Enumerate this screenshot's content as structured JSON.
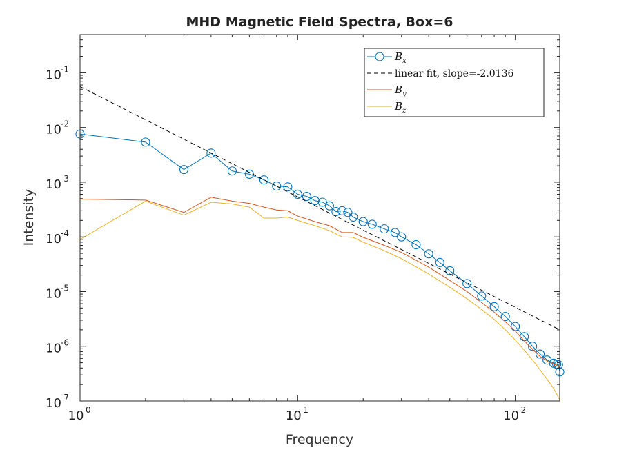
{
  "chart_data": {
    "type": "line",
    "title": "MHD Magnetic Field Spectra, Box=6",
    "xlabel": "Frequency",
    "ylabel": "Intensity",
    "xscale": "log",
    "yscale": "log",
    "xlim": [
      1,
      160
    ],
    "ylim": [
      1e-07,
      0.5
    ],
    "grid": false,
    "legend_position": "top-right",
    "x_ticks": [
      {
        "base": "10",
        "exp": "0",
        "v": 1
      },
      {
        "base": "10",
        "exp": "1",
        "v": 10
      },
      {
        "base": "10",
        "exp": "2",
        "v": 100
      }
    ],
    "y_ticks": [
      {
        "base": "10",
        "exp": "-7",
        "v": 1e-07
      },
      {
        "base": "10",
        "exp": "-6",
        "v": 1e-06
      },
      {
        "base": "10",
        "exp": "-5",
        "v": 1e-05
      },
      {
        "base": "10",
        "exp": "-4",
        "v": 0.0001
      },
      {
        "base": "10",
        "exp": "-3",
        "v": 0.001
      },
      {
        "base": "10",
        "exp": "-2",
        "v": 0.01
      },
      {
        "base": "10",
        "exp": "-1",
        "v": 0.1
      }
    ],
    "series": [
      {
        "name_var": "B",
        "name_sub": "x",
        "color": "#0072bd",
        "style": "line-circle",
        "points": [
          [
            1,
            0.0076
          ],
          [
            2,
            0.0054
          ],
          [
            3,
            0.0017
          ],
          [
            4,
            0.0034
          ],
          [
            5,
            0.0016
          ],
          [
            6,
            0.0014
          ],
          [
            7,
            0.0011
          ],
          [
            8,
            0.00085
          ],
          [
            9,
            0.00082
          ],
          [
            10,
            0.0006
          ],
          [
            11,
            0.00055
          ],
          [
            12,
            0.00046
          ],
          [
            13,
            0.00043
          ],
          [
            14,
            0.00037
          ],
          [
            15,
            0.00029
          ],
          [
            16,
            0.0003
          ],
          [
            17,
            0.00028
          ],
          [
            18,
            0.00023
          ],
          [
            20,
            0.00019
          ],
          [
            22,
            0.00017
          ],
          [
            25,
            0.00014
          ],
          [
            28,
            0.00012
          ],
          [
            30,
            0.0001
          ],
          [
            35,
            7.2e-05
          ],
          [
            40,
            4.9e-05
          ],
          [
            45,
            3.4e-05
          ],
          [
            50,
            2.4e-05
          ],
          [
            60,
            1.4e-05
          ],
          [
            70,
            8.3e-06
          ],
          [
            80,
            5.3e-06
          ],
          [
            90,
            3.5e-06
          ],
          [
            100,
            2.3e-06
          ],
          [
            110,
            1.5e-06
          ],
          [
            120,
            1e-06
          ],
          [
            130,
            7.2e-07
          ],
          [
            140,
            5.6e-07
          ],
          [
            150,
            4.9e-07
          ],
          [
            155,
            4.7e-07
          ],
          [
            158,
            4.6e-07
          ],
          [
            160,
            3.4e-07
          ]
        ]
      },
      {
        "name": "linear fit, slope=-2.0136",
        "color": "#000000",
        "style": "dashed",
        "points": [
          [
            1,
            0.056
          ],
          [
            160,
            2e-06
          ]
        ]
      },
      {
        "name_var": "B",
        "name_sub": "y",
        "color": "#d95319",
        "style": "line",
        "points": [
          [
            1,
            0.00049
          ],
          [
            2,
            0.00047
          ],
          [
            3,
            0.00028
          ],
          [
            4,
            0.00053
          ],
          [
            5,
            0.00045
          ],
          [
            6,
            0.00041
          ],
          [
            7,
            0.00035
          ],
          [
            8,
            0.00031
          ],
          [
            9,
            0.0003
          ],
          [
            10,
            0.00024
          ],
          [
            12,
            0.00019
          ],
          [
            14,
            0.00016
          ],
          [
            16,
            0.00012
          ],
          [
            18,
            0.00012
          ],
          [
            20,
            9.8e-05
          ],
          [
            25,
            7e-05
          ],
          [
            30,
            5.2e-05
          ],
          [
            40,
            2.8e-05
          ],
          [
            50,
            1.6e-05
          ],
          [
            60,
            1e-05
          ],
          [
            70,
            6.3e-06
          ],
          [
            80,
            4.2e-06
          ],
          [
            90,
            2.8e-06
          ],
          [
            100,
            1.9e-06
          ],
          [
            110,
            1.25e-06
          ],
          [
            120,
            8.8e-07
          ],
          [
            130,
            6.5e-07
          ],
          [
            140,
            5.4e-07
          ],
          [
            150,
            4.7e-07
          ],
          [
            160,
            4.3e-07
          ]
        ]
      },
      {
        "name_var": "B",
        "name_sub": "z",
        "color": "#edb120",
        "style": "line",
        "points": [
          [
            1,
            9e-05
          ],
          [
            2,
            0.00045
          ],
          [
            3,
            0.00025
          ],
          [
            4,
            0.00043
          ],
          [
            5,
            0.0004
          ],
          [
            6,
            0.00035
          ],
          [
            7,
            0.00022
          ],
          [
            8,
            0.00022
          ],
          [
            9,
            0.00023
          ],
          [
            10,
            0.0002
          ],
          [
            12,
            0.00016
          ],
          [
            14,
            0.00013
          ],
          [
            16,
            0.0001
          ],
          [
            18,
            9.8e-05
          ],
          [
            20,
            8e-05
          ],
          [
            25,
            5.6e-05
          ],
          [
            30,
            4e-05
          ],
          [
            40,
            2.1e-05
          ],
          [
            50,
            1.2e-05
          ],
          [
            60,
            7.4e-06
          ],
          [
            70,
            4.7e-06
          ],
          [
            80,
            3.1e-06
          ],
          [
            90,
            2e-06
          ],
          [
            100,
            1.3e-06
          ],
          [
            110,
            8.5e-07
          ],
          [
            120,
            5.6e-07
          ],
          [
            130,
            3.7e-07
          ],
          [
            140,
            2.5e-07
          ],
          [
            150,
            1.7e-07
          ],
          [
            160,
            1.05e-07
          ]
        ]
      }
    ]
  }
}
